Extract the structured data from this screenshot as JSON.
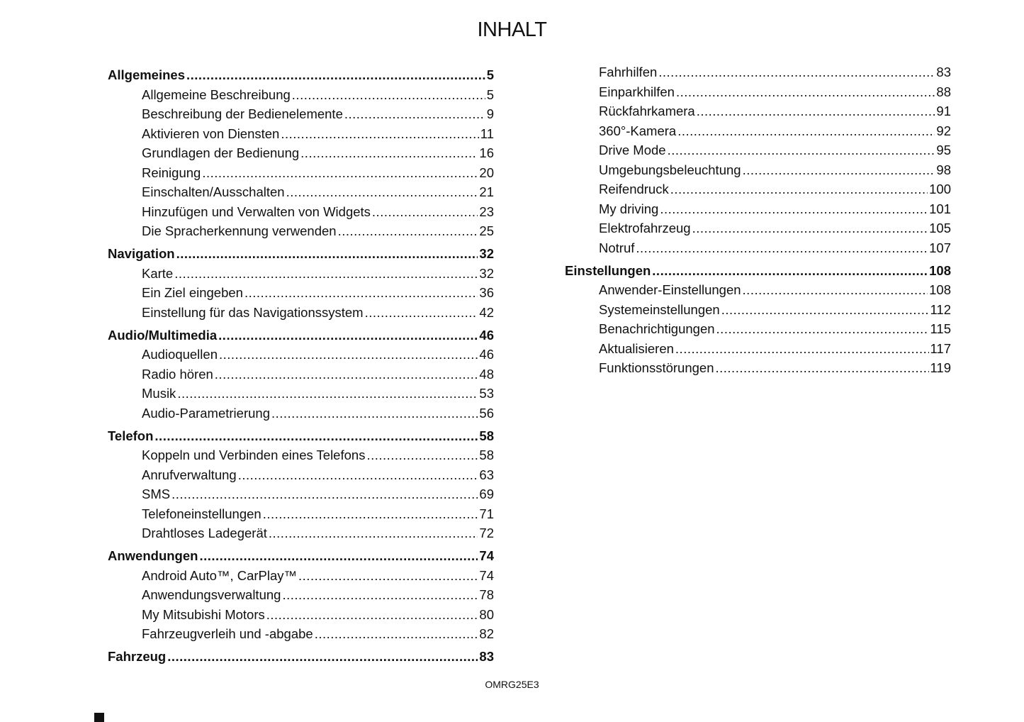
{
  "title": "INHALT",
  "left": [
    {
      "t": "h",
      "label": "Allgemeines",
      "page": "5"
    },
    {
      "t": "i",
      "label": "Allgemeine Beschreibung",
      "page": "5"
    },
    {
      "t": "i",
      "label": "Beschreibung der Bedienelemente",
      "page": "9"
    },
    {
      "t": "i",
      "label": "Aktivieren von Diensten",
      "page": "11"
    },
    {
      "t": "i",
      "label": "Grundlagen der Bedienung",
      "page": "16"
    },
    {
      "t": "i",
      "label": "Reinigung",
      "page": "20"
    },
    {
      "t": "i",
      "label": "Einschalten/Ausschalten",
      "page": "21"
    },
    {
      "t": "i",
      "label": "Hinzufügen und Verwalten von Widgets",
      "page": "23"
    },
    {
      "t": "i",
      "label": "Die Spracherkennung verwenden",
      "page": "25"
    },
    {
      "t": "h",
      "label": "Navigation",
      "page": "32"
    },
    {
      "t": "i",
      "label": "Karte",
      "page": "32"
    },
    {
      "t": "i",
      "label": "Ein Ziel eingeben",
      "page": "36"
    },
    {
      "t": "i",
      "label": "Einstellung für das Navigationssystem",
      "page": "42"
    },
    {
      "t": "h",
      "label": "Audio/Multimedia",
      "page": "46"
    },
    {
      "t": "i",
      "label": "Audioquellen",
      "page": "46"
    },
    {
      "t": "i",
      "label": "Radio hören",
      "page": "48"
    },
    {
      "t": "i",
      "label": "Musik",
      "page": "53"
    },
    {
      "t": "i",
      "label": "Audio-Parametrierung",
      "page": "56"
    },
    {
      "t": "h",
      "label": "Telefon",
      "page": "58"
    },
    {
      "t": "i",
      "label": "Koppeln und Verbinden eines Telefons",
      "page": "58"
    },
    {
      "t": "i",
      "label": "Anrufverwaltung",
      "page": "63"
    },
    {
      "t": "i",
      "label": "SMS",
      "page": "69"
    },
    {
      "t": "i",
      "label": "Telefoneinstellungen",
      "page": "71"
    },
    {
      "t": "i",
      "label": "Drahtloses Ladegerät",
      "page": "72"
    },
    {
      "t": "h",
      "label": "Anwendungen",
      "page": "74"
    },
    {
      "t": "i",
      "label": "Android Auto™, CarPlay™",
      "page": "74"
    },
    {
      "t": "i",
      "label": "Anwendungsverwaltung",
      "page": "78"
    },
    {
      "t": "i",
      "label": "My Mitsubishi Motors",
      "page": "80"
    },
    {
      "t": "i",
      "label": "Fahrzeugverleih und -abgabe",
      "page": "82"
    },
    {
      "t": "h",
      "label": "Fahrzeug",
      "page": "83"
    }
  ],
  "right": [
    {
      "t": "i",
      "label": "Fahrhilfen",
      "page": "83"
    },
    {
      "t": "i",
      "label": "Einparkhilfen",
      "page": "88"
    },
    {
      "t": "i",
      "label": "Rückfahrkamera",
      "page": "91"
    },
    {
      "t": "i",
      "label": "360°-Kamera",
      "page": "92"
    },
    {
      "t": "i",
      "label": "Drive Mode",
      "page": "95"
    },
    {
      "t": "i",
      "label": "Umgebungsbeleuchtung",
      "page": "98"
    },
    {
      "t": "i",
      "label": "Reifendruck",
      "page": "100"
    },
    {
      "t": "i",
      "label": "My driving",
      "page": "101"
    },
    {
      "t": "i",
      "label": "Elektrofahrzeug",
      "page": "105"
    },
    {
      "t": "i",
      "label": "Notruf",
      "page": "107"
    },
    {
      "t": "h",
      "label": "Einstellungen",
      "page": "108"
    },
    {
      "t": "i",
      "label": "Anwender-Einstellungen",
      "page": "108"
    },
    {
      "t": "i",
      "label": "Systemeinstellungen",
      "page": "112"
    },
    {
      "t": "i",
      "label": "Benachrichtigungen",
      "page": "115"
    },
    {
      "t": "i",
      "label": "Aktualisieren",
      "page": "117"
    },
    {
      "t": "i",
      "label": "Funktionsstörungen",
      "page": "119"
    }
  ],
  "footer": "OMRG25E3"
}
